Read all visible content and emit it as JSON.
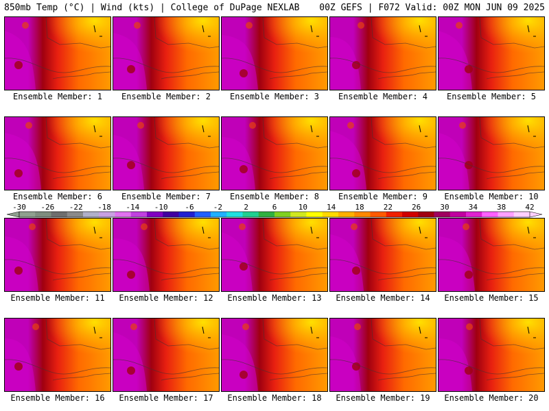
{
  "header": {
    "left": "850mb Temp (°C) | Wind (kts) | College of DuPage NEXLAB",
    "right": "00Z GEFS | F072 Valid: 00Z MON JUN 09 2025"
  },
  "panels": [
    {
      "label": "Ensemble Member: 1"
    },
    {
      "label": "Ensemble Member: 2"
    },
    {
      "label": "Ensemble Member: 3"
    },
    {
      "label": "Ensemble Member: 4"
    },
    {
      "label": "Ensemble Member: 5"
    },
    {
      "label": "Ensemble Member: 6"
    },
    {
      "label": "Ensemble Member: 7"
    },
    {
      "label": "Ensemble Member: 8"
    },
    {
      "label": "Ensemble Member: 9"
    },
    {
      "label": "Ensemble Member: 10"
    },
    {
      "label": "Ensemble Member: 11"
    },
    {
      "label": "Ensemble Member: 12"
    },
    {
      "label": "Ensemble Member: 13"
    },
    {
      "label": "Ensemble Member: 14"
    },
    {
      "label": "Ensemble Member: 15"
    },
    {
      "label": "Ensemble Member: 16"
    },
    {
      "label": "Ensemble Member: 17"
    },
    {
      "label": "Ensemble Member: 18"
    },
    {
      "label": "Ensemble Member: 19"
    },
    {
      "label": "Ensemble Member: 20"
    }
  ],
  "colorbar": {
    "ticks": [
      "-30",
      "-26",
      "-22",
      "-18",
      "-14",
      "-10",
      "-6",
      "-2",
      "2",
      "6",
      "10",
      "14",
      "18",
      "22",
      "26",
      "30",
      "34",
      "38",
      "42"
    ],
    "colors": [
      "#8fa08f",
      "#7e8c7e",
      "#6e6e6e",
      "#8a8a8a",
      "#b0b0c8",
      "#c8a0e0",
      "#e070f0",
      "#c040e0",
      "#8000c0",
      "#4000a0",
      "#2020d0",
      "#2060ff",
      "#20b0ff",
      "#20e0e0",
      "#20d090",
      "#30b040",
      "#80d020",
      "#d0e820",
      "#ffff00",
      "#ffd800",
      "#ffb000",
      "#ff8800",
      "#ff5a00",
      "#f02000",
      "#d00000",
      "#a00010",
      "#a00060",
      "#c000a0",
      "#e020d0",
      "#ff60ff",
      "#ffa0ff",
      "#ffd0ff"
    ]
  },
  "colors": {
    "warm_orange": "#ff9000",
    "yellow": "#ffd000",
    "red": "#e02010",
    "dark_red": "#a00010",
    "magenta": "#c800c0"
  }
}
